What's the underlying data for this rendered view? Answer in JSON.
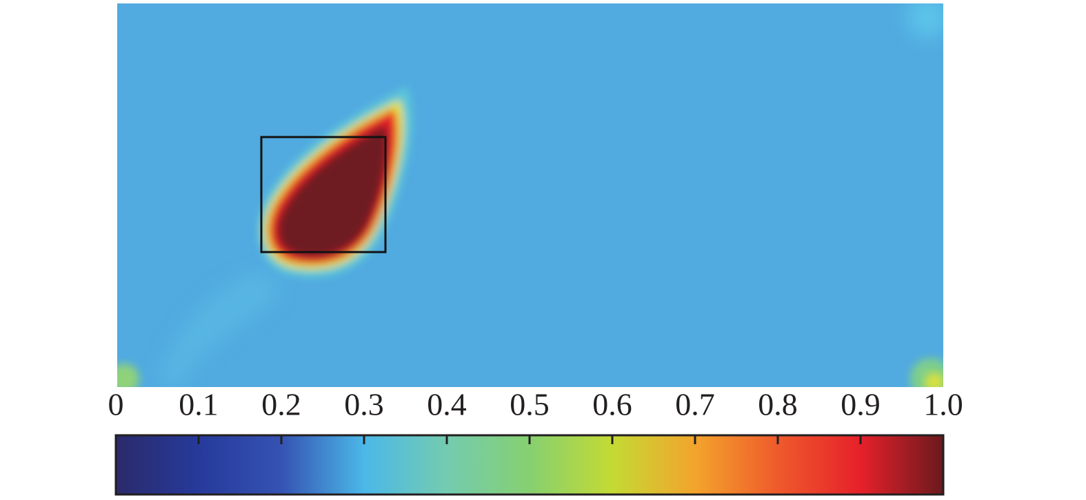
{
  "chart_data": {
    "type": "colormap",
    "colors": [
      "#2b2a6a",
      "#263a9b",
      "#3553b2",
      "#4bb8e8",
      "#74cbb0",
      "#86d070",
      "#c4da34",
      "#f3a42c",
      "#ef5a2c",
      "#e6202a",
      "#6a1a1e"
    ],
    "xlim": [
      0,
      1
    ],
    "xticks": [
      0,
      0.1,
      0.2,
      0.3,
      0.4,
      0.5,
      0.6,
      0.7,
      0.8,
      0.9,
      {
        "value": 1,
        "label": "1.0"
      }
    ]
  }
}
